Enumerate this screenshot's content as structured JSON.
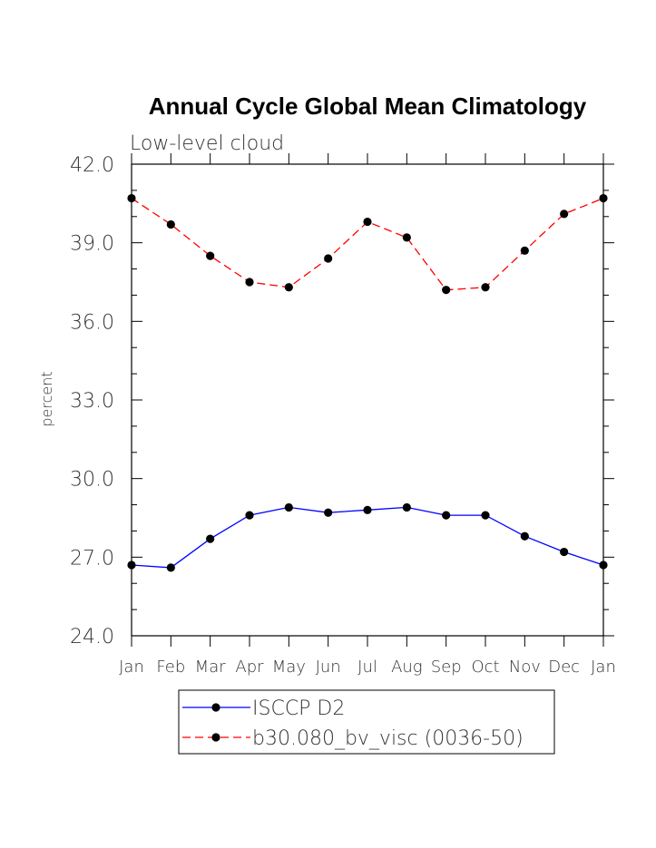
{
  "chart_data": {
    "type": "line",
    "title": "Annual Cycle Global Mean Climatology",
    "subtitle": "Low-level cloud",
    "xlabel": "",
    "ylabel": "percent",
    "categories": [
      "Jan",
      "Feb",
      "Mar",
      "Apr",
      "May",
      "Jun",
      "Jul",
      "Aug",
      "Sep",
      "Oct",
      "Nov",
      "Dec",
      "Jan"
    ],
    "ylim": [
      24.0,
      42.0
    ],
    "yticks": [
      "24.0",
      "27.0",
      "30.0",
      "33.0",
      "36.0",
      "39.0",
      "42.0"
    ],
    "grid": false,
    "legend_position": "bottom",
    "series": [
      {
        "name": "ISCCP D2",
        "color": "#0000ff",
        "line_style": "solid",
        "marker": "filled-circle",
        "values": [
          26.7,
          26.6,
          27.7,
          28.6,
          28.9,
          28.7,
          28.8,
          28.9,
          28.6,
          28.6,
          27.8,
          27.2,
          26.7
        ]
      },
      {
        "name": "b30.080_bv_visc (0036-50)",
        "color": "#ff0000",
        "line_style": "dashed",
        "marker": "filled-circle",
        "values": [
          40.7,
          39.7,
          38.5,
          37.5,
          37.3,
          38.4,
          39.8,
          39.2,
          37.2,
          37.3,
          38.7,
          40.1,
          40.7
        ]
      }
    ]
  }
}
